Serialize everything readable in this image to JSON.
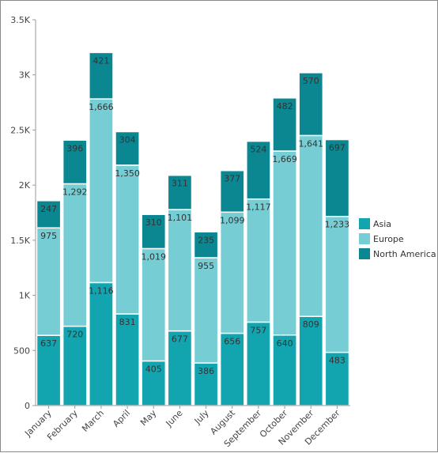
{
  "chart_data": {
    "type": "bar",
    "stacked": true,
    "title": "",
    "xlabel": "",
    "ylabel": "",
    "categories": [
      "January",
      "February",
      "March",
      "April",
      "May",
      "June",
      "July",
      "August",
      "September",
      "October",
      "November",
      "December"
    ],
    "series": [
      {
        "name": "Asia",
        "color": "#12a5b0",
        "values": [
          637,
          720,
          1116,
          831,
          405,
          677,
          386,
          656,
          757,
          640,
          809,
          483
        ]
      },
      {
        "name": "Europe",
        "color": "#76cdd4",
        "values": [
          975,
          1292,
          1666,
          1350,
          1019,
          1101,
          955,
          1099,
          1117,
          1669,
          1641,
          1233
        ]
      },
      {
        "name": "North America",
        "color": "#0a8791",
        "values": [
          247,
          396,
          421,
          304,
          310,
          311,
          235,
          377,
          524,
          482,
          570,
          697
        ]
      }
    ],
    "ylim": [
      0,
      3500
    ],
    "yticks": [
      {
        "value": 0,
        "label": "0"
      },
      {
        "value": 500,
        "label": "500"
      },
      {
        "value": 1000,
        "label": "1K"
      },
      {
        "value": 1500,
        "label": "1.5K"
      },
      {
        "value": 2000,
        "label": "2K"
      },
      {
        "value": 2500,
        "label": "2.5K"
      },
      {
        "value": 3000,
        "label": "3K"
      },
      {
        "value": 3500,
        "label": "3.5K"
      }
    ],
    "grid": false,
    "legend_position": "right"
  }
}
